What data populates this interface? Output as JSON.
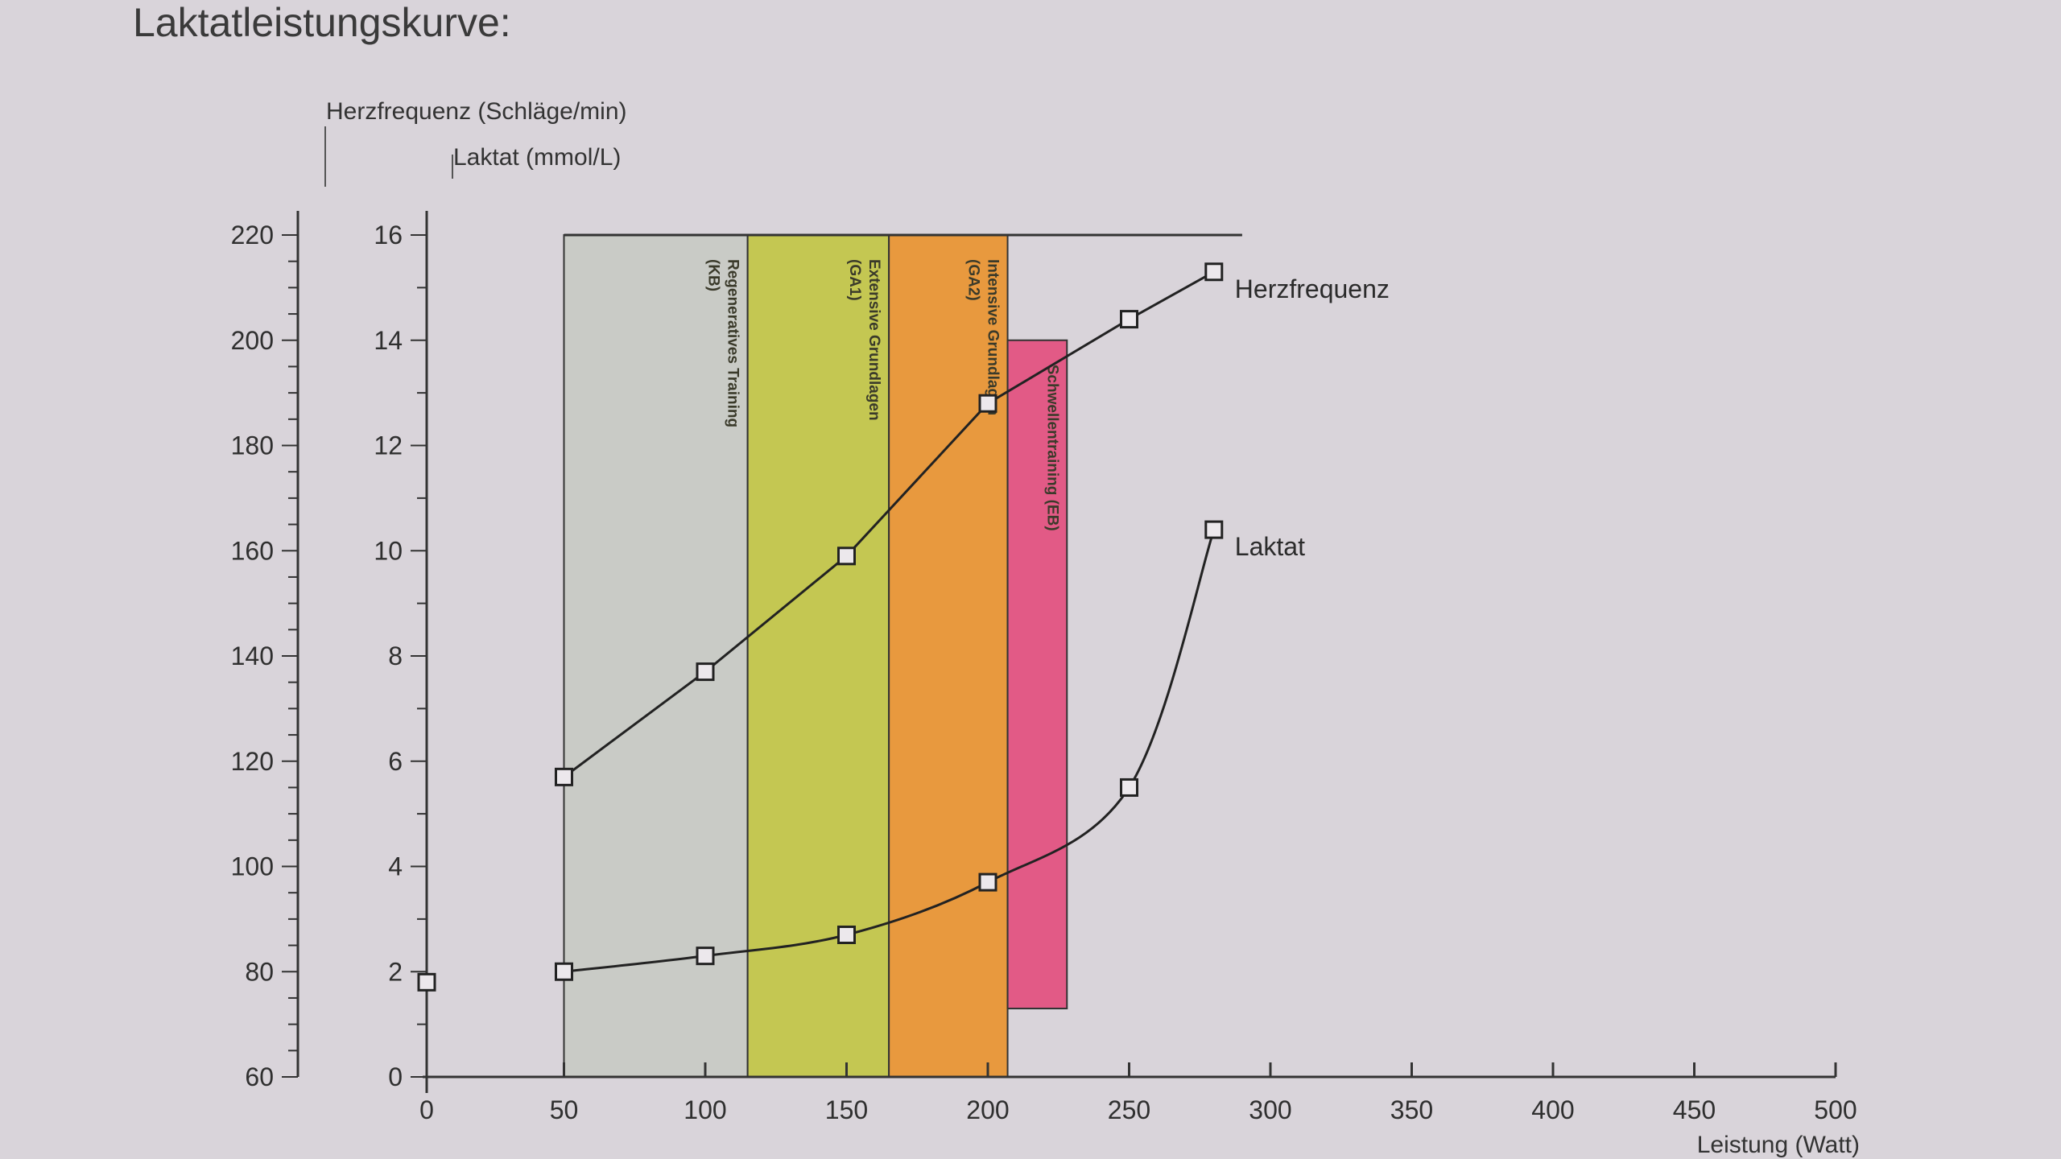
{
  "chart_data": {
    "type": "line",
    "title": "Laktatleistungskurve:",
    "xlabel": "Leistung (Watt)",
    "ylabel_hr": "Herzfrequenz (Schläge/min)",
    "ylabel_lactate": "Laktat (mmol/L)",
    "x_ticks": [
      "0",
      "50",
      "100",
      "150",
      "200",
      "250",
      "300",
      "350",
      "400",
      "450",
      "500"
    ],
    "hr_ticks": [
      "60",
      "80",
      "100",
      "120",
      "140",
      "160",
      "180",
      "200",
      "220"
    ],
    "lactate_ticks": [
      "0",
      "2",
      "4",
      "6",
      "8",
      "10",
      "12",
      "14",
      "16"
    ],
    "xlim": [
      0,
      500
    ],
    "hr_ylim": [
      60,
      220
    ],
    "lactate_ylim": [
      0,
      16
    ],
    "grid": false,
    "zones": [
      {
        "label": "Regeneratives Training",
        "code": "(KB)",
        "x_start": 50,
        "x_end": 115,
        "color": "#c9cbc6"
      },
      {
        "label": "Extensive Grundlagen",
        "code": "(GA1)",
        "x_start": 115,
        "x_end": 165,
        "color": "#c4c752"
      },
      {
        "label": "Intensive Grundlagen",
        "code": "(GA2)",
        "x_start": 165,
        "x_end": 207,
        "color": "#e8993e"
      },
      {
        "label": "Schwellentraining (EB)",
        "code": "",
        "x_start": 207,
        "x_end": 228,
        "color": "#e25a86"
      }
    ],
    "series": [
      {
        "name": "Herzfrequenz",
        "axis": "hr",
        "x": [
          50,
          100,
          150,
          200,
          250,
          280
        ],
        "y": [
          117,
          137,
          159,
          188,
          204,
          213
        ]
      },
      {
        "name": "Laktat",
        "axis": "lactate",
        "x": [
          50,
          100,
          150,
          200,
          250,
          280
        ],
        "y": [
          2.0,
          2.3,
          2.7,
          3.7,
          5.5,
          10.4
        ]
      }
    ],
    "extra_markers": [
      {
        "axis": "lactate",
        "x": 0,
        "y": 1.8
      }
    ],
    "colors": {
      "line": "#222222",
      "axis": "#333333",
      "background": "#d9d4da"
    }
  }
}
